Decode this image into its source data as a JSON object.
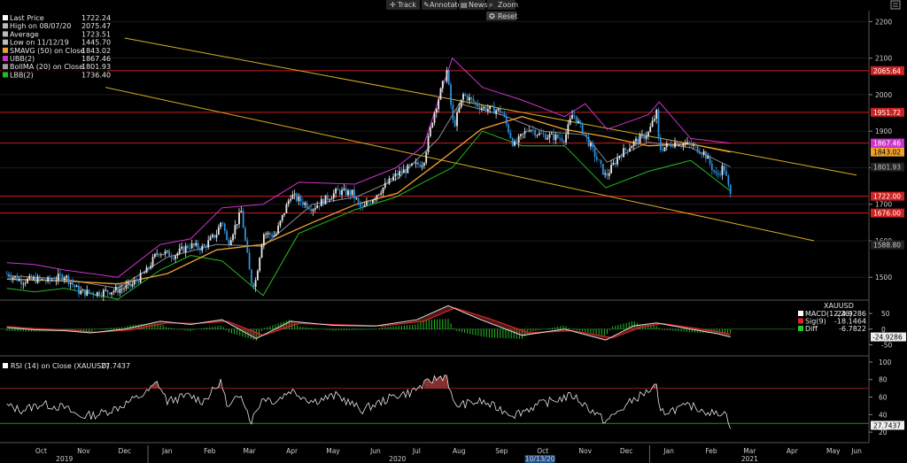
{
  "toolbar": {
    "track": "Track",
    "annotate": "Annotate",
    "news": "News",
    "zoom": "Zoom",
    "reset": "Reset"
  },
  "legend_main": [
    {
      "label": "Last Price",
      "value": "1722.24",
      "color": "#ffffff"
    },
    {
      "label": "High on 08/07/20",
      "value": "2075.47",
      "color": "#bbbbbb"
    },
    {
      "label": "Average",
      "value": "1723.51",
      "color": "#bbbbbb"
    },
    {
      "label": "Low on 11/12/19",
      "value": "1445.70",
      "color": "#bbbbbb"
    },
    {
      "label": "SMAVG (50)  on Close",
      "value": "1843.02",
      "color": "#f0a030"
    },
    {
      "label": "UBB(2)",
      "value": "1867.46",
      "color": "#cc33cc"
    },
    {
      "label": "BollMA (20)  on Close",
      "value": "1801.93",
      "color": "#a0a0a0"
    },
    {
      "label": "LBB(2)",
      "value": "1736.40",
      "color": "#22bb22"
    }
  ],
  "legend_macd": {
    "title": "XAUUSD",
    "items": [
      {
        "label": "MACD(12,26)",
        "value": "-24.9286",
        "color": "#ffffff"
      },
      {
        "label": "Sig(9)",
        "value": "-18.1464",
        "color": "#dd2222"
      },
      {
        "label": "Diff",
        "value": "-6.7822",
        "color": "#22cc22"
      }
    ]
  },
  "legend_rsi": {
    "label": "RSI (14)  on Close (XAUUSD)",
    "value": "27.7437"
  },
  "price_tags": [
    {
      "value": "2065.64",
      "price": 2065.64,
      "bg": "#cc2222",
      "fg": "#ffffff"
    },
    {
      "value": "1951.72",
      "price": 1951.72,
      "bg": "#cc2222",
      "fg": "#ffffff"
    },
    {
      "value": "1867.46",
      "price": 1867.46,
      "bg": "#cc33cc",
      "fg": "#ffffff"
    },
    {
      "value": "1843.02",
      "price": 1843.02,
      "bg": "#f0a030",
      "fg": "#000000"
    },
    {
      "value": "1801.93",
      "price": 1801.93,
      "bg": "#222222",
      "fg": "#cccccc"
    },
    {
      "value": "1722.00",
      "price": 1722.0,
      "bg": "#cc2222",
      "fg": "#ffffff"
    },
    {
      "value": "1676.00",
      "price": 1676.0,
      "bg": "#cc2222",
      "fg": "#ffffff"
    },
    {
      "value": "1588.80",
      "price": 1588.8,
      "bg": "#222222",
      "fg": "#cccccc"
    }
  ],
  "macd_tags": [
    {
      "value": "-24.9286",
      "bg": "#eeeeee",
      "fg": "#000000"
    }
  ],
  "rsi_tags": [
    {
      "value": "27.7437",
      "bg": "#eeeeee",
      "fg": "#000000"
    }
  ],
  "x_axis": {
    "months": [
      "Oct",
      "Nov",
      "Dec",
      "Jan",
      "Feb",
      "Mar",
      "Apr",
      "May",
      "Jun",
      "Jul",
      "Aug",
      "Sep",
      "Oct",
      "Nov",
      "Dec",
      "Jan",
      "Feb",
      "Mar",
      "Apr",
      "May",
      "Jun"
    ],
    "years": [
      "2019",
      "2020",
      "2021"
    ],
    "cursor_date": "10/13/20"
  },
  "chart_data": {
    "type": "candlestick",
    "instrument": "XAUUSD",
    "y_price": {
      "ticks": [
        1500,
        1600,
        1700,
        1800,
        1900,
        2000,
        2100,
        2200
      ],
      "ylim": [
        1440,
        2230
      ]
    },
    "horizontal_levels": [
      2065.64,
      1951.72,
      1867.46,
      1722.0,
      1676.0
    ],
    "trend_channel": [
      {
        "from": [
          "2019-12-15",
          2155
        ],
        "to": [
          "2021-06-01",
          1780
        ]
      },
      {
        "from": [
          "2019-12-01",
          2020
        ],
        "to": [
          "2021-05-01",
          1600
        ]
      }
    ],
    "close_path": [
      [
        "2019-09-20",
        1510
      ],
      [
        "2019-10-01",
        1490
      ],
      [
        "2019-10-10",
        1495
      ],
      [
        "2019-10-20",
        1490
      ],
      [
        "2019-11-01",
        1505
      ],
      [
        "2019-11-12",
        1460
      ],
      [
        "2019-11-25",
        1457
      ],
      [
        "2019-12-10",
        1466
      ],
      [
        "2019-12-20",
        1478
      ],
      [
        "2019-12-31",
        1517
      ],
      [
        "2020-01-08",
        1570
      ],
      [
        "2020-01-20",
        1560
      ],
      [
        "2020-01-31",
        1588
      ],
      [
        "2020-02-10",
        1580
      ],
      [
        "2020-02-20",
        1620
      ],
      [
        "2020-02-24",
        1660
      ],
      [
        "2020-02-28",
        1590
      ],
      [
        "2020-03-09",
        1680
      ],
      [
        "2020-03-16",
        1490
      ],
      [
        "2020-03-19",
        1480
      ],
      [
        "2020-03-25",
        1620
      ],
      [
        "2020-04-03",
        1615
      ],
      [
        "2020-04-14",
        1725
      ],
      [
        "2020-04-30",
        1690
      ],
      [
        "2020-05-18",
        1735
      ],
      [
        "2020-05-29",
        1730
      ],
      [
        "2020-06-05",
        1685
      ],
      [
        "2020-06-15",
        1725
      ],
      [
        "2020-06-30",
        1780
      ],
      [
        "2020-07-10",
        1800
      ],
      [
        "2020-07-20",
        1815
      ],
      [
        "2020-07-27",
        1940
      ],
      [
        "2020-08-06",
        2065
      ],
      [
        "2020-08-11",
        1910
      ],
      [
        "2020-08-18",
        2000
      ],
      [
        "2020-08-31",
        1965
      ],
      [
        "2020-09-15",
        1955
      ],
      [
        "2020-09-24",
        1860
      ],
      [
        "2020-10-05",
        1910
      ],
      [
        "2020-10-13",
        1890
      ],
      [
        "2020-10-31",
        1880
      ],
      [
        "2020-11-06",
        1950
      ],
      [
        "2020-11-16",
        1880
      ],
      [
        "2020-11-30",
        1775
      ],
      [
        "2020-12-10",
        1835
      ],
      [
        "2020-12-21",
        1870
      ],
      [
        "2020-12-31",
        1895
      ],
      [
        "2021-01-06",
        1950
      ],
      [
        "2021-01-08",
        1850
      ],
      [
        "2021-01-20",
        1870
      ],
      [
        "2021-02-01",
        1860
      ],
      [
        "2021-02-10",
        1840
      ],
      [
        "2021-02-19",
        1775
      ],
      [
        "2021-02-24",
        1805
      ],
      [
        "2021-03-01",
        1722
      ]
    ],
    "sma50_path": [
      [
        "2019-09-20",
        1495
      ],
      [
        "2019-11-01",
        1490
      ],
      [
        "2019-12-10",
        1482
      ],
      [
        "2020-01-15",
        1510
      ],
      [
        "2020-02-20",
        1575
      ],
      [
        "2020-03-25",
        1590
      ],
      [
        "2020-04-30",
        1650
      ],
      [
        "2020-06-01",
        1700
      ],
      [
        "2020-07-01",
        1730
      ],
      [
        "2020-07-31",
        1815
      ],
      [
        "2020-08-31",
        1905
      ],
      [
        "2020-09-30",
        1940
      ],
      [
        "2020-10-31",
        1905
      ],
      [
        "2020-11-30",
        1885
      ],
      [
        "2020-12-31",
        1860
      ],
      [
        "2021-01-31",
        1865
      ],
      [
        "2021-03-01",
        1843
      ]
    ],
    "bollma_path": [
      [
        "2019-09-20",
        1505
      ],
      [
        "2019-11-01",
        1495
      ],
      [
        "2019-12-10",
        1470
      ],
      [
        "2020-01-15",
        1555
      ],
      [
        "2020-02-20",
        1590
      ],
      [
        "2020-03-25",
        1585
      ],
      [
        "2020-04-30",
        1700
      ],
      [
        "2020-06-01",
        1720
      ],
      [
        "2020-07-01",
        1770
      ],
      [
        "2020-07-31",
        1880
      ],
      [
        "2020-08-15",
        1975
      ],
      [
        "2020-09-15",
        1945
      ],
      [
        "2020-10-15",
        1900
      ],
      [
        "2020-11-15",
        1890
      ],
      [
        "2020-12-01",
        1815
      ],
      [
        "2020-12-31",
        1870
      ],
      [
        "2021-01-31",
        1855
      ],
      [
        "2021-03-01",
        1802
      ]
    ],
    "ubb_path": [
      [
        "2019-09-20",
        1540
      ],
      [
        "2019-10-10",
        1535
      ],
      [
        "2019-11-01",
        1520
      ],
      [
        "2019-12-10",
        1500
      ],
      [
        "2020-01-10",
        1590
      ],
      [
        "2020-02-01",
        1605
      ],
      [
        "2020-02-24",
        1690
      ],
      [
        "2020-03-25",
        1700
      ],
      [
        "2020-04-20",
        1760
      ],
      [
        "2020-05-31",
        1755
      ],
      [
        "2020-06-30",
        1800
      ],
      [
        "2020-07-20",
        1860
      ],
      [
        "2020-08-10",
        2100
      ],
      [
        "2020-09-01",
        2020
      ],
      [
        "2020-09-30",
        1985
      ],
      [
        "2020-10-31",
        1940
      ],
      [
        "2020-11-15",
        1975
      ],
      [
        "2020-12-01",
        1905
      ],
      [
        "2020-12-31",
        1945
      ],
      [
        "2021-01-08",
        1980
      ],
      [
        "2021-01-31",
        1880
      ],
      [
        "2021-03-01",
        1867
      ]
    ],
    "lbb_path": [
      [
        "2019-09-20",
        1470
      ],
      [
        "2019-10-10",
        1460
      ],
      [
        "2019-11-01",
        1470
      ],
      [
        "2019-12-10",
        1440
      ],
      [
        "2020-01-10",
        1520
      ],
      [
        "2020-02-01",
        1560
      ],
      [
        "2020-02-24",
        1545
      ],
      [
        "2020-03-25",
        1450
      ],
      [
        "2020-04-20",
        1620
      ],
      [
        "2020-05-31",
        1685
      ],
      [
        "2020-06-30",
        1720
      ],
      [
        "2020-07-20",
        1760
      ],
      [
        "2020-08-10",
        1800
      ],
      [
        "2020-09-01",
        1900
      ],
      [
        "2020-09-30",
        1860
      ],
      [
        "2020-10-31",
        1860
      ],
      [
        "2020-11-30",
        1745
      ],
      [
        "2020-12-31",
        1790
      ],
      [
        "2021-01-31",
        1820
      ],
      [
        "2021-03-01",
        1736
      ]
    ],
    "macd": {
      "ticks": [
        -50,
        0,
        50
      ],
      "ylim": [
        -80,
        90
      ],
      "path": [
        [
          "2019-09-20",
          5
        ],
        [
          "2019-10-10",
          -2
        ],
        [
          "2019-11-01",
          -5
        ],
        [
          "2019-11-20",
          -12
        ],
        [
          "2019-12-15",
          0
        ],
        [
          "2020-01-10",
          25
        ],
        [
          "2020-02-01",
          15
        ],
        [
          "2020-02-24",
          30
        ],
        [
          "2020-03-20",
          -30
        ],
        [
          "2020-04-14",
          25
        ],
        [
          "2020-05-15",
          12
        ],
        [
          "2020-06-15",
          10
        ],
        [
          "2020-07-15",
          30
        ],
        [
          "2020-08-07",
          75
        ],
        [
          "2020-08-31",
          30
        ],
        [
          "2020-09-30",
          -20
        ],
        [
          "2020-10-31",
          0
        ],
        [
          "2020-11-30",
          -35
        ],
        [
          "2020-12-20",
          10
        ],
        [
          "2021-01-06",
          20
        ],
        [
          "2021-01-31",
          0
        ],
        [
          "2021-02-20",
          -15
        ],
        [
          "2021-03-01",
          -25
        ]
      ],
      "signal_path": [
        [
          "2019-09-20",
          8
        ],
        [
          "2019-10-10",
          2
        ],
        [
          "2019-11-01",
          -2
        ],
        [
          "2019-11-25",
          -10
        ],
        [
          "2019-12-20",
          -2
        ],
        [
          "2020-01-15",
          20
        ],
        [
          "2020-02-05",
          18
        ],
        [
          "2020-02-28",
          25
        ],
        [
          "2020-03-25",
          -20
        ],
        [
          "2020-04-20",
          18
        ],
        [
          "2020-05-20",
          14
        ],
        [
          "2020-06-20",
          10
        ],
        [
          "2020-07-20",
          25
        ],
        [
          "2020-08-12",
          68
        ],
        [
          "2020-09-05",
          35
        ],
        [
          "2020-10-05",
          -12
        ],
        [
          "2020-11-05",
          -5
        ],
        [
          "2020-12-05",
          -28
        ],
        [
          "2020-12-25",
          5
        ],
        [
          "2021-01-10",
          18
        ],
        [
          "2021-02-05",
          2
        ],
        [
          "2021-02-25",
          -12
        ],
        [
          "2021-03-01",
          -18
        ]
      ]
    },
    "rsi": {
      "ticks": [
        20,
        40,
        60,
        80,
        100
      ],
      "ylim": [
        10,
        105
      ],
      "overbought": 70,
      "oversold": 30,
      "path": [
        [
          "2019-09-20",
          50
        ],
        [
          "2019-10-01",
          45
        ],
        [
          "2019-10-15",
          52
        ],
        [
          "2019-11-01",
          48
        ],
        [
          "2019-11-12",
          38
        ],
        [
          "2019-11-25",
          40
        ],
        [
          "2019-12-10",
          48
        ],
        [
          "2019-12-31",
          65
        ],
        [
          "2020-01-08",
          77
        ],
        [
          "2020-01-15",
          55
        ],
        [
          "2020-01-31",
          62
        ],
        [
          "2020-02-10",
          55
        ],
        [
          "2020-02-24",
          78
        ],
        [
          "2020-02-28",
          45
        ],
        [
          "2020-03-09",
          65
        ],
        [
          "2020-03-16",
          32
        ],
        [
          "2020-03-25",
          60
        ],
        [
          "2020-04-03",
          55
        ],
        [
          "2020-04-14",
          68
        ],
        [
          "2020-04-30",
          55
        ],
        [
          "2020-05-18",
          62
        ],
        [
          "2020-06-05",
          45
        ],
        [
          "2020-06-30",
          62
        ],
        [
          "2020-07-10",
          65
        ],
        [
          "2020-07-27",
          80
        ],
        [
          "2020-08-06",
          85
        ],
        [
          "2020-08-11",
          50
        ],
        [
          "2020-08-31",
          55
        ],
        [
          "2020-09-24",
          40
        ],
        [
          "2020-10-13",
          52
        ],
        [
          "2020-11-06",
          62
        ],
        [
          "2020-11-30",
          32
        ],
        [
          "2020-12-21",
          58
        ],
        [
          "2021-01-06",
          72
        ],
        [
          "2021-01-08",
          42
        ],
        [
          "2021-01-31",
          50
        ],
        [
          "2021-02-19",
          40
        ],
        [
          "2021-02-24",
          45
        ],
        [
          "2021-03-01",
          28
        ]
      ]
    }
  }
}
